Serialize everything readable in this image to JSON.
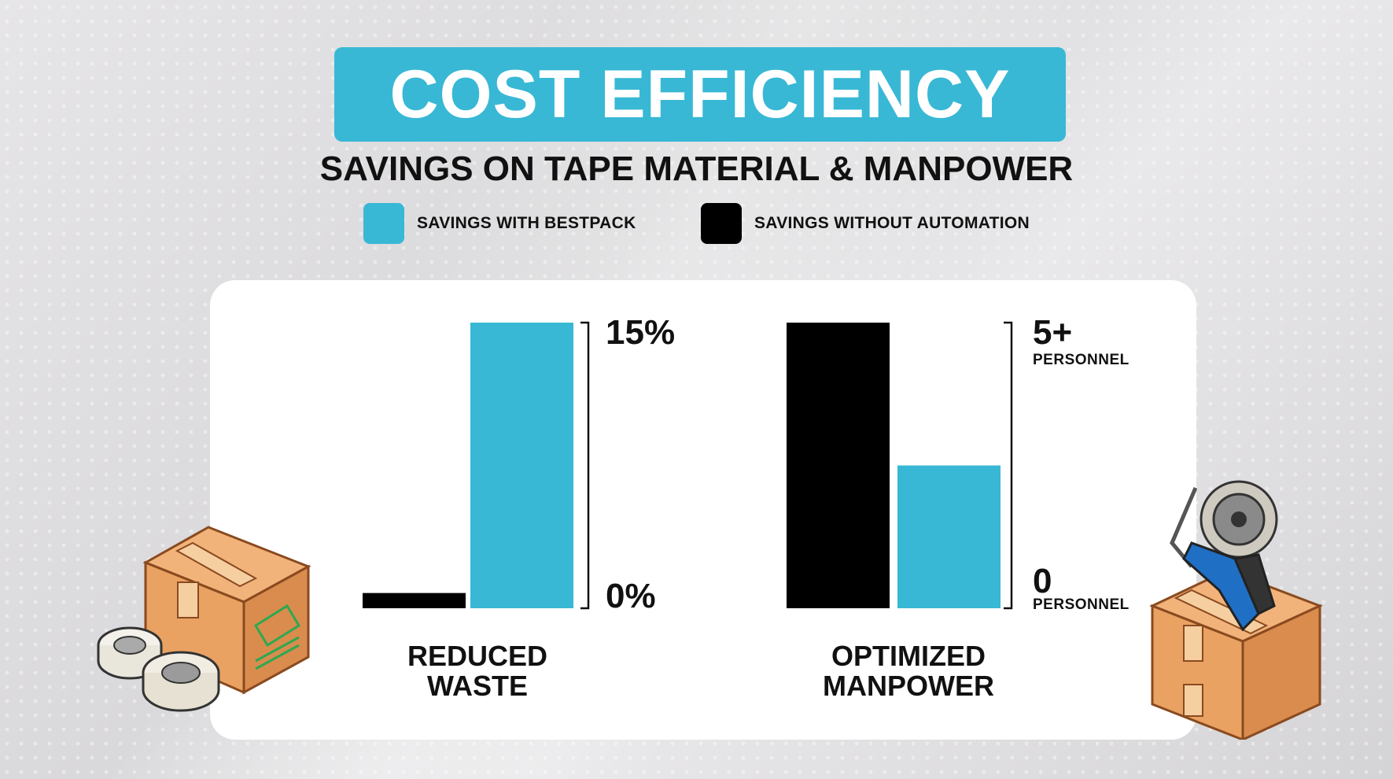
{
  "title": "COST EFFICIENCY",
  "subtitle": "SAVINGS ON TAPE MATERIAL & MANPOWER",
  "legend": [
    {
      "label": "SAVINGS WITH BESTPACK",
      "color": "#38b8d5"
    },
    {
      "label": "SAVINGS WITHOUT AUTOMATION",
      "color": "#000000"
    }
  ],
  "chart_data": [
    {
      "type": "bar",
      "categories": [
        "REDUCED WASTE"
      ],
      "category_lines": [
        "REDUCED",
        "WASTE"
      ],
      "series": [
        {
          "name": "SAVINGS WITHOUT AUTOMATION",
          "values": [
            0.8
          ]
        },
        {
          "name": "SAVINGS WITH BESTPACK",
          "values": [
            15
          ]
        }
      ],
      "ylim": [
        0,
        15
      ],
      "y_ticks": [
        {
          "value": 15,
          "label": "15%"
        },
        {
          "value": 0,
          "label": "0%"
        }
      ]
    },
    {
      "type": "bar",
      "categories": [
        "OPTIMIZED MANPOWER"
      ],
      "category_lines": [
        "OPTIMIZED",
        "MANPOWER"
      ],
      "series": [
        {
          "name": "SAVINGS WITHOUT AUTOMATION",
          "values": [
            5
          ]
        },
        {
          "name": "SAVINGS WITH BESTPACK",
          "values": [
            2.5
          ]
        }
      ],
      "ylim": [
        0,
        5
      ],
      "y_ticks": [
        {
          "value": 5,
          "label": "5+",
          "sublabel": "PERSONNEL"
        },
        {
          "value": 0,
          "label": "0",
          "sublabel": "PERSONNEL"
        }
      ]
    }
  ],
  "illustrations": {
    "left": "boxes-and-tape-rolls",
    "right": "box-with-tape-dispenser"
  }
}
